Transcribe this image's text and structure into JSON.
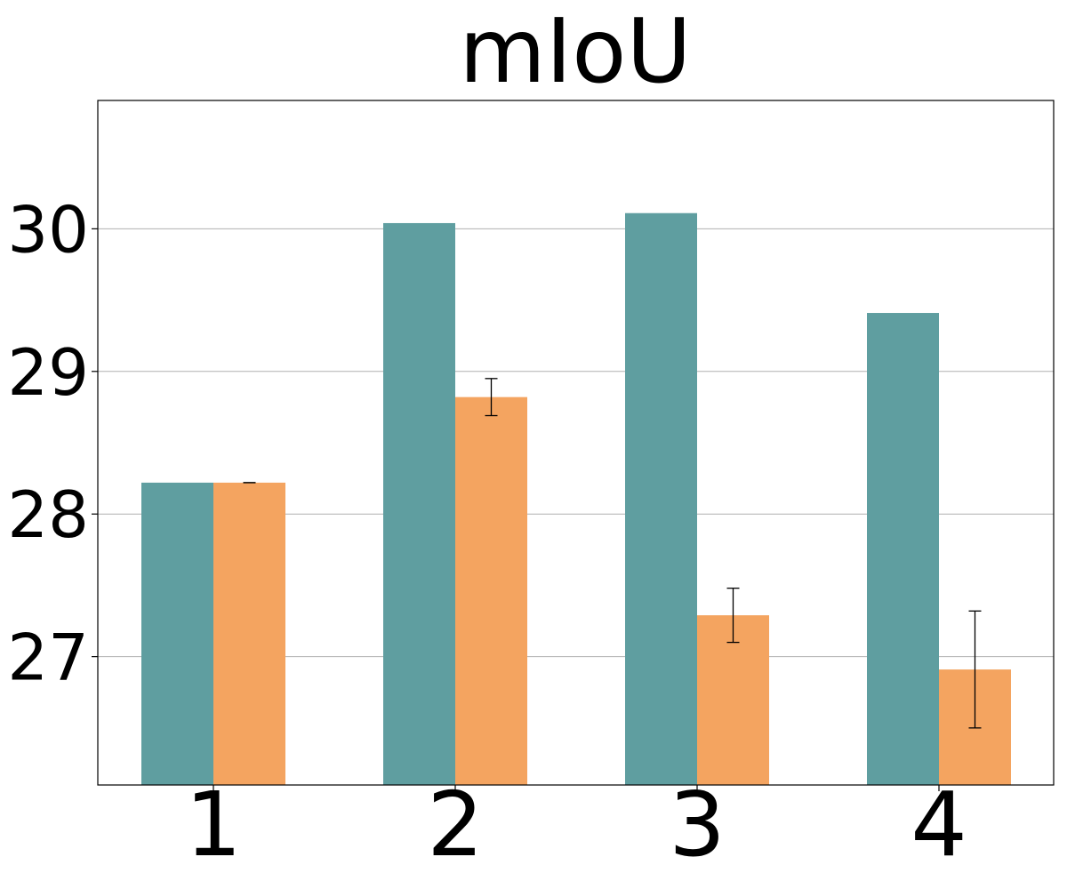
{
  "chart_data": {
    "type": "bar",
    "title": "mIoU",
    "xlabel": "",
    "ylabel": "",
    "categories": [
      "1",
      "2",
      "3",
      "4"
    ],
    "ylim": [
      26.1,
      30.9
    ],
    "yticks": [
      "27",
      "28",
      "29",
      "30"
    ],
    "grid": "horizontal",
    "legend": "none",
    "series": [
      {
        "color": "#5f9ea0",
        "values": [
          28.22,
          30.04,
          30.11,
          29.41
        ]
      },
      {
        "color": "#f4a460",
        "values": [
          28.22,
          28.82,
          27.29,
          26.91
        ],
        "errors": [
          0.0,
          0.13,
          0.19,
          0.41
        ]
      }
    ]
  }
}
